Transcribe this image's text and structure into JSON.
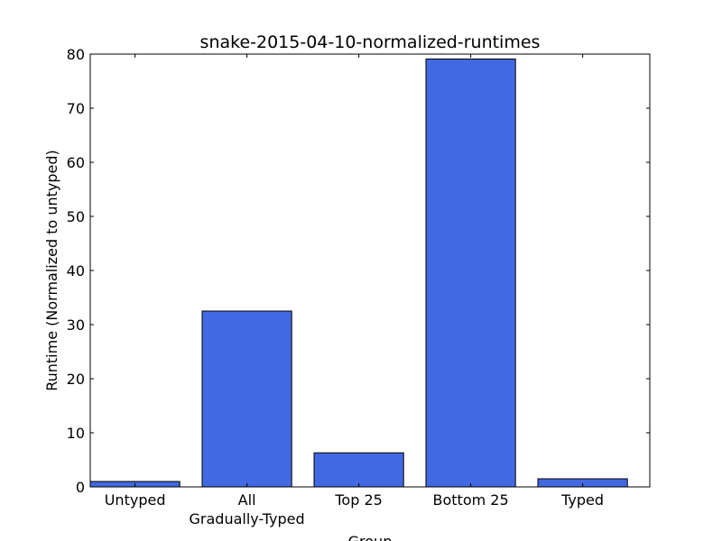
{
  "chart_data": {
    "type": "bar",
    "title": "snake-2015-04-10-normalized-runtimes",
    "xlabel": "Group",
    "ylabel": "Runtime (Normalized to untyped)",
    "categories": [
      [
        "Untyped"
      ],
      [
        "All",
        "Gradually-Typed"
      ],
      [
        "Top 25"
      ],
      [
        "Bottom 25"
      ],
      [
        "Typed"
      ]
    ],
    "values": [
      1.0,
      32.5,
      6.3,
      79.1,
      1.5
    ],
    "ylim": [
      0,
      80
    ],
    "yticks": [
      0,
      10,
      20,
      30,
      40,
      50,
      60,
      70,
      80
    ],
    "bar_color": "#4169e1",
    "edge_color": "#000000",
    "grid": false,
    "legend": "none"
  }
}
